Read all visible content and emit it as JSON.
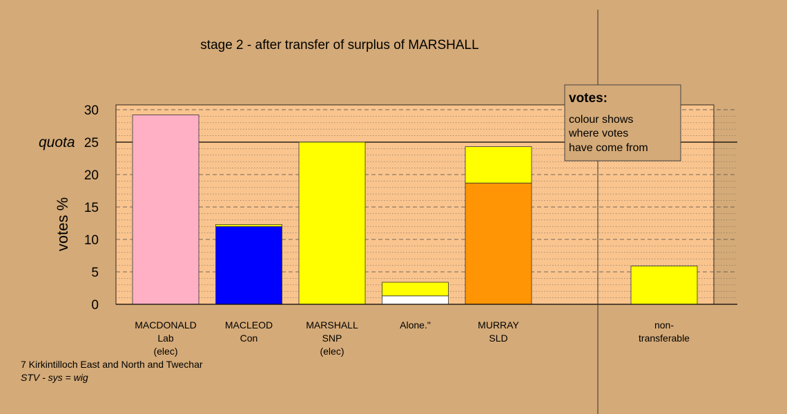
{
  "chart_data": {
    "type": "bar",
    "title": "stage 2 - after transfer of surplus of MARSHALL",
    "ylabel": "votes %",
    "ylim": [
      0,
      30
    ],
    "yticks": [
      0,
      5,
      10,
      15,
      20,
      25,
      30
    ],
    "quota": {
      "value": 25,
      "label": "quota"
    },
    "grid": true,
    "background_color": "#d4aa78",
    "plot_color": "#f9c48e",
    "categories": [
      {
        "lines": [
          "MACDONALD",
          "Lab",
          "(elec)"
        ],
        "segments": [
          {
            "value": 29.2,
            "color": "#ffb0c4"
          }
        ]
      },
      {
        "lines": [
          "MACLEOD",
          "Con"
        ],
        "segments": [
          {
            "value": 12.0,
            "color": "#0000ff"
          },
          {
            "value": 0.3,
            "color": "#ffff00"
          }
        ]
      },
      {
        "lines": [
          "MARSHALL",
          "SNP",
          "(elec)"
        ],
        "segments": [
          {
            "value": 25.0,
            "color": "#ffff00"
          }
        ]
      },
      {
        "lines": [
          "Alone.\""
        ],
        "segments": [
          {
            "value": 1.3,
            "color": "#ffffff"
          },
          {
            "value": 2.1,
            "color": "#ffff00"
          }
        ]
      },
      {
        "lines": [
          "MURRAY",
          "SLD"
        ],
        "segments": [
          {
            "value": 18.7,
            "color": "#ff9505"
          },
          {
            "value": 5.6,
            "color": "#ffff00"
          }
        ]
      }
    ],
    "nontransferable": {
      "lines": [
        "non-",
        "transferable"
      ],
      "segments": [
        {
          "value": 5.9,
          "color": "#ffff00"
        }
      ]
    },
    "legend": {
      "placement": "top-right",
      "title": "votes:",
      "lines": [
        "colour shows",
        "where votes",
        "have come from"
      ]
    },
    "footnote": {
      "line1": "7 Kirkintilloch East and North and Twechar",
      "line2": "STV - sys = wig"
    }
  }
}
